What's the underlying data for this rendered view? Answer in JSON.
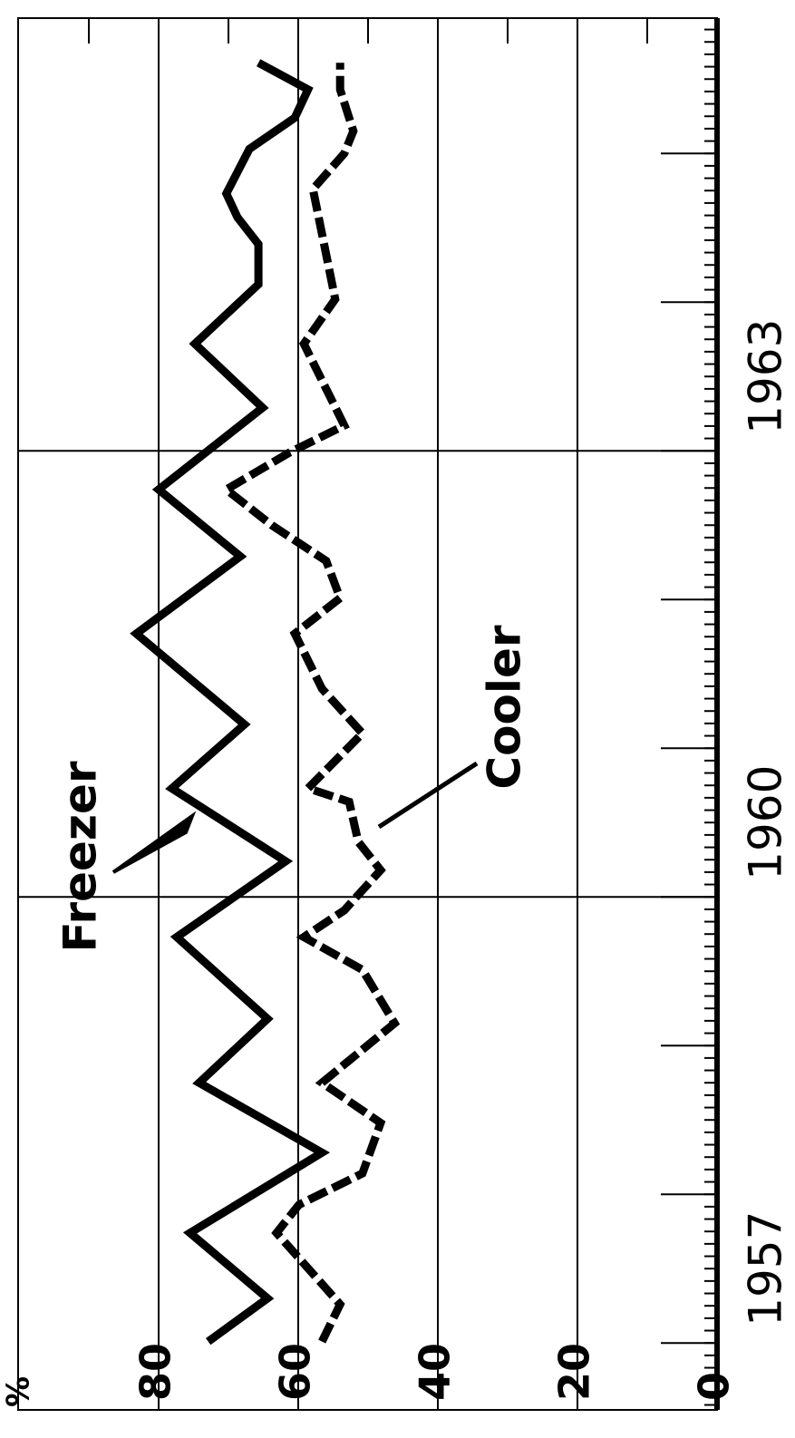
{
  "chart_data": {
    "type": "line",
    "orientation": "rotated",
    "y_unit_label": "%",
    "xlim": [
      1956.55,
      1965.91
    ],
    "xticks": [
      {
        "value": 1957.5,
        "label": "1957"
      },
      {
        "value": 1960.5,
        "label": "1960"
      },
      {
        "value": 1963.5,
        "label": "1963"
      }
    ],
    "major_xticks": [
      1957,
      1958,
      1959,
      1960,
      1961,
      1962,
      1963,
      1964,
      1965
    ],
    "xgrid": [
      1960,
      1963
    ],
    "ylim": [
      0,
      100
    ],
    "yticks": [
      0,
      20,
      40,
      60,
      80
    ],
    "minor_yticks": [
      10,
      30,
      50,
      70,
      90
    ],
    "grid": true,
    "series": [
      {
        "name": "Freezer",
        "color": "#000000",
        "line_style": "solid",
        "x": [
          1957.01,
          1957.3,
          1957.74,
          1958.28,
          1958.75,
          1959.18,
          1959.73,
          1960.24,
          1960.73,
          1961.16,
          1961.77,
          1962.29,
          1962.74,
          1963.29,
          1963.72,
          1964.12,
          1964.39,
          1964.57,
          1964.73,
          1965.03,
          1965.24,
          1965.43,
          1965.61
        ],
        "values": [
          72.9,
          64.4,
          75.5,
          56.6,
          74.2,
          64.4,
          77.4,
          61.8,
          78.1,
          67.7,
          83.2,
          68.3,
          80.0,
          65.1,
          74.8,
          65.7,
          65.7,
          68.7,
          70.3,
          67.0,
          60.5,
          58.6,
          65.7
        ]
      },
      {
        "name": "Cooler",
        "color": "#000000",
        "line_style": "dashed",
        "x": [
          1957.01,
          1957.26,
          1957.74,
          1957.93,
          1958.14,
          1958.48,
          1958.75,
          1959.15,
          1959.51,
          1959.73,
          1959.91,
          1960.18,
          1960.37,
          1960.64,
          1960.73,
          1961.1,
          1961.4,
          1961.77,
          1962.01,
          1962.26,
          1962.5,
          1962.74,
          1962.99,
          1963.17,
          1963.72,
          1964.02,
          1964.76,
          1965.0,
          1965.15,
          1965.43,
          1965.61
        ],
        "values": [
          56.6,
          54.0,
          63.1,
          59.9,
          50.8,
          48.2,
          56.6,
          46.2,
          50.8,
          59.2,
          53.4,
          48.2,
          51.4,
          52.7,
          58.6,
          50.8,
          56.6,
          60.5,
          54.0,
          56.0,
          63.8,
          70.3,
          61.2,
          53.4,
          59.2,
          54.7,
          57.9,
          53.4,
          52.1,
          54.0,
          54.0
        ]
      }
    ]
  }
}
